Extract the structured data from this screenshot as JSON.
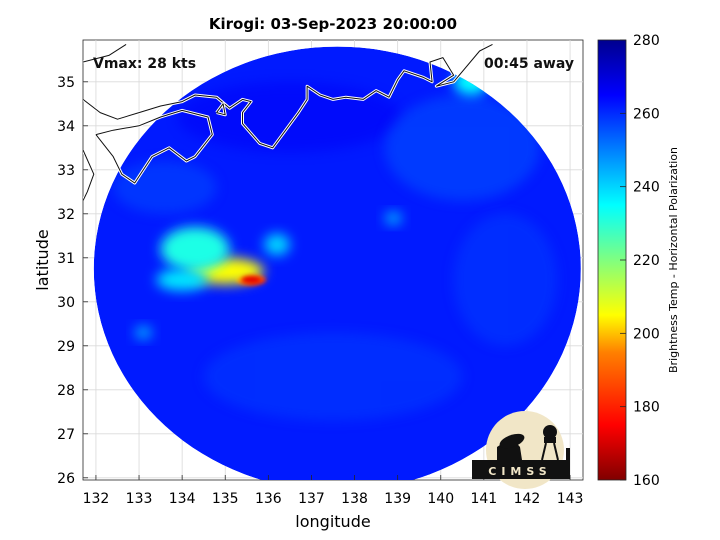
{
  "title": "Kirogi: 03-Sep-2023 20:00:00",
  "overlays": {
    "vmax": "Vmax: 28 kts",
    "time_away": "00:45 away"
  },
  "axes": {
    "xlabel": "longitude",
    "ylabel": "latitude",
    "xlim": [
      131.7,
      143.3
    ],
    "ylim": [
      25.95,
      35.95
    ],
    "xticks": [
      "132",
      "133",
      "134",
      "135",
      "136",
      "137",
      "138",
      "139",
      "140",
      "141",
      "142",
      "143"
    ],
    "yticks": [
      "26",
      "27",
      "28",
      "29",
      "30",
      "31",
      "32",
      "33",
      "34",
      "35"
    ]
  },
  "colorbar": {
    "label": "Brightness Temp - Horizontal Polarization",
    "range": [
      160,
      280
    ],
    "ticks": [
      "160",
      "180",
      "200",
      "220",
      "240",
      "260",
      "280"
    ]
  },
  "logo": {
    "text": "CIMSS"
  },
  "swath": {
    "center_lon": 137.6,
    "center_lat": 30.75,
    "radius_lon": 5.65,
    "radius_lat": 5.05,
    "background_value": 262
  },
  "cold_features": [
    {
      "lon": 135.6,
      "lat": 30.5,
      "value": 178,
      "spread_lon": 0.35,
      "spread_lat": 0.12
    },
    {
      "lon": 135.0,
      "lat": 30.7,
      "value": 205,
      "spread_lon": 0.9,
      "spread_lat": 0.3
    },
    {
      "lon": 134.3,
      "lat": 31.2,
      "value": 232,
      "spread_lon": 0.8,
      "spread_lat": 0.5
    },
    {
      "lon": 134.0,
      "lat": 30.5,
      "value": 238,
      "spread_lon": 0.6,
      "spread_lat": 0.25
    },
    {
      "lon": 136.2,
      "lat": 31.3,
      "value": 240,
      "spread_lon": 0.3,
      "spread_lat": 0.25
    },
    {
      "lon": 138.9,
      "lat": 31.9,
      "value": 245,
      "spread_lon": 0.2,
      "spread_lat": 0.15
    },
    {
      "lon": 140.7,
      "lat": 35.0,
      "value": 235,
      "spread_lon": 0.4,
      "spread_lat": 0.3
    },
    {
      "lon": 133.1,
      "lat": 29.3,
      "value": 245,
      "spread_lon": 0.2,
      "spread_lat": 0.15
    }
  ],
  "coastlines": [
    [
      [
        131.7,
        35.45
      ],
      [
        132.3,
        35.6
      ],
      [
        132.7,
        35.85
      ]
    ],
    [
      [
        131.7,
        34.6
      ],
      [
        132.1,
        34.3
      ],
      [
        132.5,
        34.15
      ],
      [
        133.0,
        34.3
      ],
      [
        133.5,
        34.45
      ],
      [
        134.0,
        34.55
      ],
      [
        134.3,
        34.7
      ],
      [
        134.8,
        34.65
      ],
      [
        135.1,
        34.4
      ],
      [
        135.4,
        34.6
      ],
      [
        135.6,
        34.55
      ],
      [
        135.4,
        34.3
      ],
      [
        135.4,
        34.05
      ],
      [
        135.8,
        33.6
      ],
      [
        136.1,
        33.5
      ],
      [
        136.4,
        33.9
      ],
      [
        136.7,
        34.3
      ],
      [
        136.9,
        34.6
      ],
      [
        136.9,
        34.9
      ],
      [
        137.2,
        34.7
      ],
      [
        137.5,
        34.6
      ],
      [
        137.8,
        34.65
      ],
      [
        138.2,
        34.6
      ],
      [
        138.5,
        34.8
      ],
      [
        138.8,
        34.65
      ],
      [
        139.0,
        35.05
      ],
      [
        139.15,
        35.25
      ],
      [
        139.6,
        35.1
      ],
      [
        139.8,
        35.0
      ],
      [
        139.75,
        35.45
      ],
      [
        140.05,
        35.55
      ],
      [
        140.3,
        35.15
      ],
      [
        139.9,
        34.9
      ],
      [
        140.3,
        35.0
      ],
      [
        140.9,
        35.7
      ],
      [
        141.2,
        35.85
      ]
    ],
    [
      [
        132.0,
        33.8
      ],
      [
        132.4,
        33.3
      ],
      [
        132.6,
        32.9
      ],
      [
        132.9,
        32.7
      ],
      [
        133.3,
        33.3
      ],
      [
        133.7,
        33.5
      ],
      [
        134.1,
        33.2
      ],
      [
        134.3,
        33.3
      ],
      [
        134.7,
        33.8
      ],
      [
        134.6,
        34.2
      ],
      [
        134.0,
        34.35
      ],
      [
        133.5,
        34.2
      ],
      [
        133.0,
        34.0
      ],
      [
        132.4,
        33.9
      ],
      [
        132.0,
        33.8
      ]
    ],
    [
      [
        131.7,
        33.45
      ],
      [
        131.95,
        32.9
      ],
      [
        131.8,
        32.5
      ],
      [
        131.7,
        32.3
      ]
    ],
    [
      [
        134.8,
        34.3
      ],
      [
        134.95,
        34.5
      ],
      [
        135.0,
        34.25
      ],
      [
        134.8,
        34.3
      ]
    ]
  ]
}
